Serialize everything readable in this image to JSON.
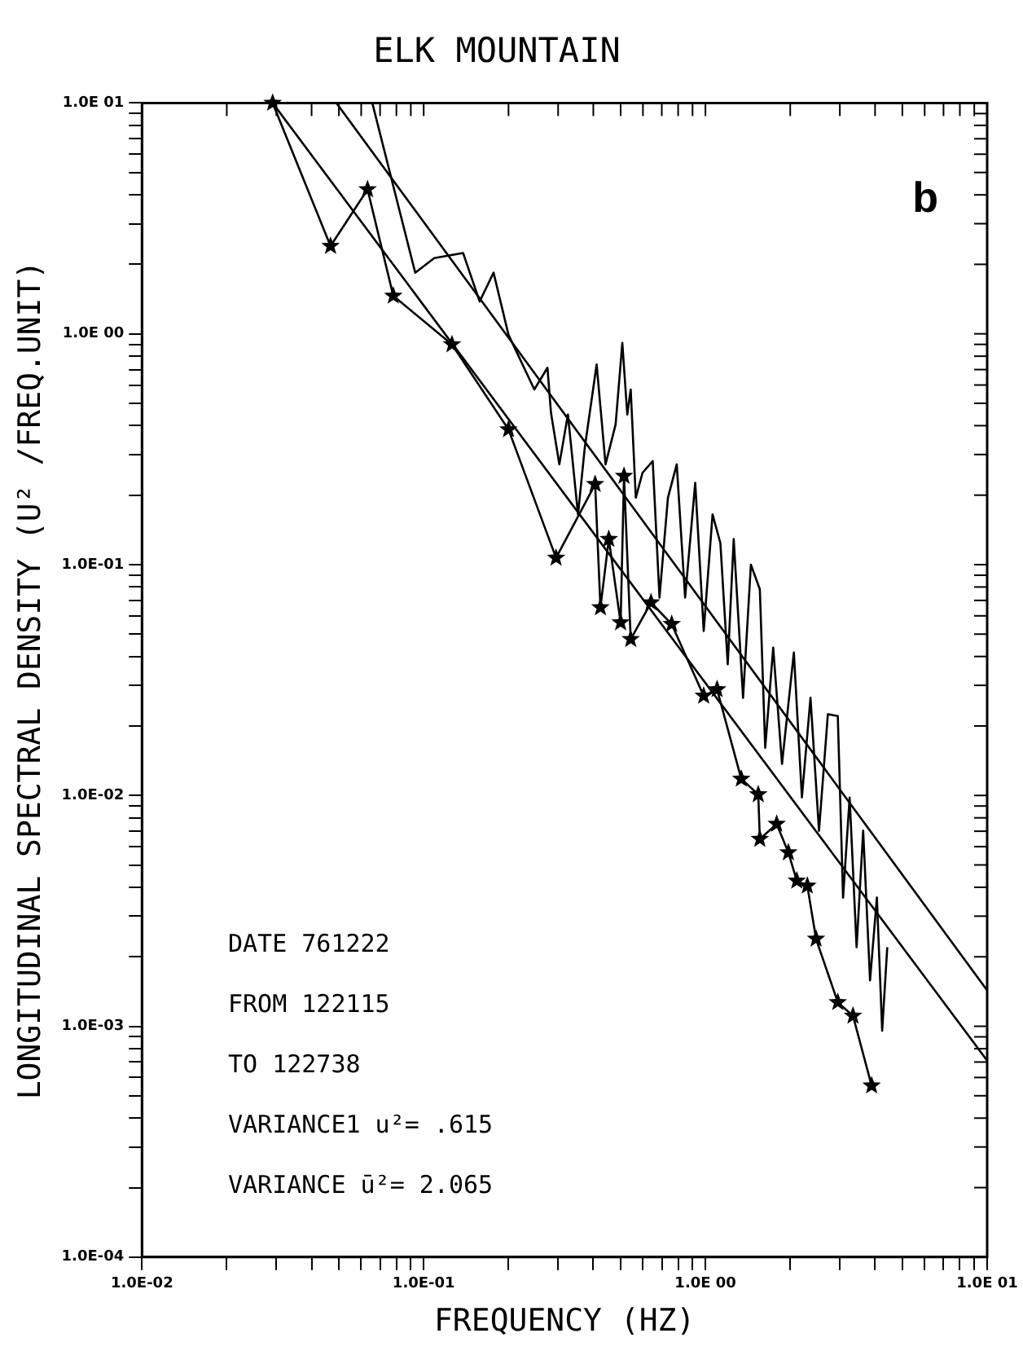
{
  "chart_data": {
    "type": "line",
    "title": "ELK MOUNTAIN",
    "xlabel": "FREQUENCY (HZ)",
    "ylabel": "LONGITUDINAL SPECTRAL DENSITY (U² /FREQ.UNIT)",
    "log": "xy",
    "grid": false,
    "legend": false,
    "xlim": [
      0.01,
      10
    ],
    "ylim": [
      0.0001,
      10
    ],
    "xticks": [
      {
        "value": 0.01,
        "label": "1.0E-02"
      },
      {
        "value": 0.02,
        "label": null
      },
      {
        "value": 0.03,
        "label": null
      },
      {
        "value": 0.04,
        "label": null
      },
      {
        "value": 0.05,
        "label": null
      },
      {
        "value": 0.06,
        "label": null
      },
      {
        "value": 0.07,
        "label": null
      },
      {
        "value": 0.08,
        "label": null
      },
      {
        "value": 0.09,
        "label": null
      },
      {
        "value": 0.1,
        "label": "1.0E-01"
      },
      {
        "value": 0.2,
        "label": null
      },
      {
        "value": 0.3,
        "label": null
      },
      {
        "value": 0.4,
        "label": null
      },
      {
        "value": 0.5,
        "label": null
      },
      {
        "value": 0.6,
        "label": null
      },
      {
        "value": 0.7,
        "label": null
      },
      {
        "value": 0.8,
        "label": null
      },
      {
        "value": 0.9,
        "label": null
      },
      {
        "value": 1,
        "label": "1.0E 00"
      },
      {
        "value": 2,
        "label": null
      },
      {
        "value": 3,
        "label": null
      },
      {
        "value": 4,
        "label": null
      },
      {
        "value": 5,
        "label": null
      },
      {
        "value": 6,
        "label": null
      },
      {
        "value": 7,
        "label": null
      },
      {
        "value": 8,
        "label": null
      },
      {
        "value": 9,
        "label": null
      },
      {
        "value": 10,
        "label": "1.0E 01"
      }
    ],
    "yticks": [
      {
        "value": 0.0001,
        "label": "1.0E-04"
      },
      {
        "value": 0.0002,
        "label": null
      },
      {
        "value": 0.0003,
        "label": null
      },
      {
        "value": 0.0004,
        "label": null
      },
      {
        "value": 0.0005,
        "label": null
      },
      {
        "value": 0.0006,
        "label": null
      },
      {
        "value": 0.0007,
        "label": null
      },
      {
        "value": 0.0008,
        "label": null
      },
      {
        "value": 0.0009,
        "label": null
      },
      {
        "value": 0.001,
        "label": "1.0E-03"
      },
      {
        "value": 0.002,
        "label": null
      },
      {
        "value": 0.003,
        "label": null
      },
      {
        "value": 0.004,
        "label": null
      },
      {
        "value": 0.005,
        "label": null
      },
      {
        "value": 0.006,
        "label": null
      },
      {
        "value": 0.007,
        "label": null
      },
      {
        "value": 0.008,
        "label": null
      },
      {
        "value": 0.009,
        "label": null
      },
      {
        "value": 0.01,
        "label": "1.0E-02"
      },
      {
        "value": 0.02,
        "label": null
      },
      {
        "value": 0.03,
        "label": null
      },
      {
        "value": 0.04,
        "label": null
      },
      {
        "value": 0.05,
        "label": null
      },
      {
        "value": 0.06,
        "label": null
      },
      {
        "value": 0.07,
        "label": null
      },
      {
        "value": 0.08,
        "label": null
      },
      {
        "value": 0.09,
        "label": null
      },
      {
        "value": 0.1,
        "label": "1.0E-01"
      },
      {
        "value": 0.2,
        "label": null
      },
      {
        "value": 0.3,
        "label": null
      },
      {
        "value": 0.4,
        "label": null
      },
      {
        "value": 0.5,
        "label": null
      },
      {
        "value": 0.6,
        "label": null
      },
      {
        "value": 0.7,
        "label": null
      },
      {
        "value": 0.8,
        "label": null
      },
      {
        "value": 0.9,
        "label": null
      },
      {
        "value": 1,
        "label": "1.0E 00"
      },
      {
        "value": 2,
        "label": null
      },
      {
        "value": 3,
        "label": null
      },
      {
        "value": 4,
        "label": null
      },
      {
        "value": 5,
        "label": null
      },
      {
        "value": 6,
        "label": null
      },
      {
        "value": 7,
        "label": null
      },
      {
        "value": 8,
        "label": null
      },
      {
        "value": 9,
        "label": null
      },
      {
        "value": 10,
        "label": "1.0E 01"
      }
    ],
    "series": [
      {
        "color": "#000000",
        "marker": "none",
        "x": [
          0.0657,
          0.0933,
          0.109,
          0.138,
          0.158,
          0.177,
          0.2,
          0.247,
          0.275,
          0.283,
          0.303,
          0.325,
          0.353,
          0.373,
          0.411,
          0.442,
          0.48,
          0.507,
          0.528,
          0.543,
          0.566,
          0.598,
          0.65,
          0.687,
          0.736,
          0.791,
          0.847,
          0.92,
          0.986,
          1.06,
          1.13,
          1.2,
          1.26,
          1.36,
          1.45,
          1.56,
          1.63,
          1.74,
          1.87,
          2.06,
          2.2,
          2.36,
          2.53,
          2.72,
          2.95,
          3.08,
          3.25,
          3.44,
          3.63,
          3.84,
          4.06,
          4.24,
          4.42
        ],
        "values": [
          10,
          1.84,
          2.13,
          2.24,
          1.38,
          1.84,
          0.99,
          0.574,
          0.713,
          0.455,
          0.272,
          0.447,
          0.165,
          0.321,
          0.737,
          0.272,
          0.405,
          0.914,
          0.447,
          0.574,
          0.195,
          0.25,
          0.281,
          0.072,
          0.195,
          0.272,
          0.072,
          0.226,
          0.0516,
          0.165,
          0.124,
          0.037,
          0.129,
          0.0265,
          0.1,
          0.0782,
          0.0161,
          0.0437,
          0.0137,
          0.0416,
          0.0098,
          0.0265,
          0.00703,
          0.0225,
          0.0221,
          0.00361,
          0.0098,
          0.0022,
          0.00703,
          0.00158,
          0.00361,
          0.000957,
          0.0022
        ]
      },
      {
        "color": "#000000",
        "marker": "star",
        "x": [
          0.0291,
          0.0467,
          0.0632,
          0.078,
          0.126,
          0.2,
          0.295,
          0.406,
          0.424,
          0.454,
          0.5,
          0.514,
          0.543,
          0.641,
          0.759,
          0.986,
          1.1,
          1.34,
          1.54,
          1.56,
          1.79,
          1.97,
          2.11,
          2.3,
          2.47,
          2.95,
          3.34,
          3.89
        ],
        "values": [
          10,
          2.4,
          4.22,
          1.46,
          0.899,
          0.385,
          0.107,
          0.223,
          0.0652,
          0.129,
          0.0561,
          0.242,
          0.0475,
          0.0685,
          0.0552,
          0.027,
          0.0288,
          0.0118,
          0.0101,
          0.00647,
          0.00752,
          0.00566,
          0.00427,
          0.00406,
          0.00239,
          0.00127,
          0.00111,
          0.000553
        ]
      },
      {
        "color": "#000000",
        "marker": "none",
        "x": [
          0.0291,
          10
        ],
        "values": [
          10,
          0.00071
        ]
      },
      {
        "color": "#000000",
        "marker": "none",
        "x": [
          0.049,
          10
        ],
        "values": [
          10,
          0.00143
        ]
      }
    ],
    "annotations": [
      "b",
      "DATE 761222",
      "FROM 122115",
      "TO 122738",
      "VARIANCE1 u²= .615",
      "VARIANCE ū²= 2.065"
    ]
  }
}
